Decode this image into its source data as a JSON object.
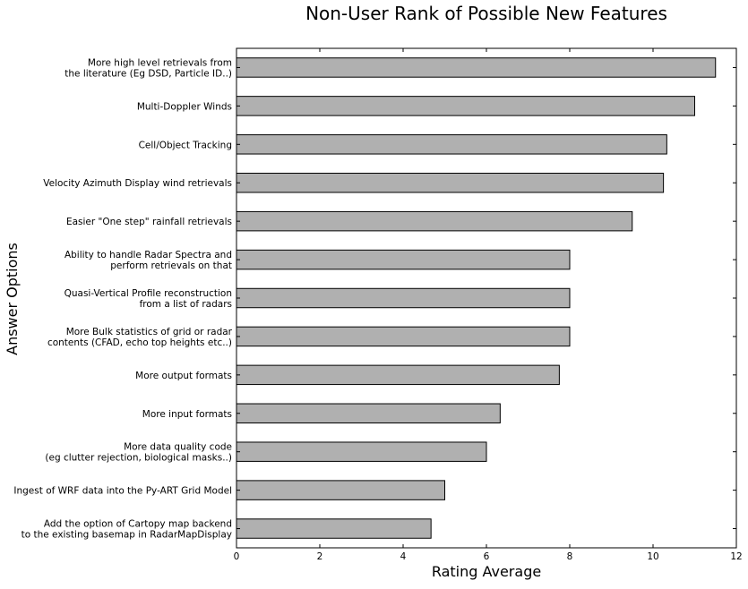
{
  "chart_data": {
    "type": "bar",
    "orientation": "horizontal",
    "title": "Non-User Rank of Possible New Features",
    "xlabel": "Rating Average",
    "ylabel": "Answer Options",
    "xlim": [
      0,
      12
    ],
    "xticks": [
      0,
      2,
      4,
      6,
      8,
      10,
      12
    ],
    "grid": false,
    "bar_color": "#b0b0b0",
    "bar_edge_color": "#000000",
    "categories": [
      [
        "More high level retrievals from",
        "the literature (Eg DSD, Particle ID..)"
      ],
      [
        "Multi-Doppler Winds"
      ],
      [
        "Cell/Object Tracking"
      ],
      [
        "Velocity Azimuth Display wind retrievals"
      ],
      [
        "Easier \"One step\" rainfall retrievals"
      ],
      [
        "Ability to handle Radar Spectra and",
        "perform retrievals on that"
      ],
      [
        "Quasi-Vertical Profile reconstruction",
        "from a list of radars"
      ],
      [
        "More Bulk statistics of grid or radar",
        "contents (CFAD, echo top heights etc..)"
      ],
      [
        "More output formats"
      ],
      [
        "More input formats"
      ],
      [
        "More data quality code",
        "(eg clutter rejection, biological masks..)"
      ],
      [
        "Ingest of WRF data into the Py-ART Grid Model"
      ],
      [
        "Add the option of Cartopy map backend",
        "to the existing basemap in RadarMapDisplay"
      ]
    ],
    "values": [
      11.5,
      11.0,
      10.33,
      10.25,
      9.5,
      8.0,
      8.0,
      8.0,
      7.75,
      6.33,
      6.0,
      5.0,
      4.67
    ]
  }
}
